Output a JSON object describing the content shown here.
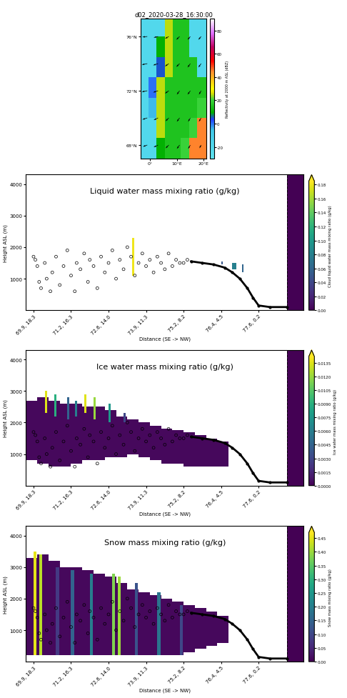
{
  "observations": {
    "x": [
      0.0,
      0.05,
      0.1,
      0.15,
      0.2,
      0.3,
      0.35,
      0.45,
      0.5,
      0.6,
      0.7,
      0.8,
      0.9,
      1.0,
      1.1,
      1.15,
      1.25,
      1.35,
      1.45,
      1.5,
      1.6,
      1.7,
      1.8,
      1.9,
      2.0,
      2.1,
      2.2,
      2.3,
      2.4,
      2.5,
      2.6,
      2.7,
      2.8,
      2.9,
      3.0,
      3.1,
      3.2,
      3.3,
      3.4,
      3.5,
      3.6,
      3.7,
      3.8,
      3.9,
      4.0,
      4.1
    ],
    "y": [
      1700,
      1600,
      1400,
      900,
      700,
      1500,
      1000,
      600,
      1200,
      1700,
      800,
      1400,
      1900,
      1100,
      600,
      1500,
      1300,
      1800,
      900,
      1600,
      1400,
      700,
      1700,
      1200,
      1500,
      1900,
      1000,
      1600,
      1300,
      2000,
      1700,
      1100,
      1500,
      1800,
      1400,
      1600,
      1200,
      1700,
      1500,
      1300,
      1800,
      1400,
      1600,
      1500,
      1500,
      1600
    ]
  },
  "track": {
    "x": [
      4.2,
      4.5,
      4.8,
      5.1,
      5.3,
      5.5,
      5.7,
      5.85,
      6.0,
      6.3,
      6.75
    ],
    "y": [
      1550,
      1500,
      1450,
      1350,
      1200,
      1000,
      700,
      400,
      150,
      100,
      100
    ]
  },
  "chart_data": [
    {
      "type": "map",
      "title": "d02_2020-03-28_16:30:00",
      "xlim": [
        -3.5,
        21
      ],
      "ylim": [
        67,
        77.3
      ],
      "xticks": [
        {
          "value": 0,
          "label": "0°"
        },
        {
          "value": 10,
          "label": "10°E"
        },
        {
          "value": 20,
          "label": "20°E"
        }
      ],
      "yticks": [
        {
          "value": 68,
          "label": "68°N"
        },
        {
          "value": 72,
          "label": "72°N"
        },
        {
          "value": 76,
          "label": "76°N"
        }
      ],
      "lon_edges": [
        -3.5,
        -0.5,
        2.5,
        5.5,
        8.5,
        11.5,
        14.5,
        17.5,
        21
      ],
      "lat_edges": [
        67,
        68.5,
        70,
        71.5,
        73,
        74.5,
        76,
        77.3
      ],
      "reflectivity": [
        [
          -20,
          -20,
          10,
          15,
          15,
          20,
          45,
          45
        ],
        [
          -20,
          -20,
          25,
          15,
          15,
          15,
          20,
          45
        ],
        [
          -20,
          -5,
          25,
          15,
          15,
          15,
          15,
          20
        ],
        [
          -20,
          0,
          25,
          15,
          15,
          15,
          15,
          15
        ],
        [
          -20,
          -20,
          5,
          25,
          15,
          15,
          15,
          -20
        ],
        [
          -20,
          -20,
          10,
          25,
          15,
          15,
          -20,
          -20
        ],
        [
          -20,
          -20,
          -20,
          25,
          15,
          15,
          -20,
          -20
        ]
      ],
      "colorbar_label": "Reflectivity at 2000 m ASL (dBZ)",
      "colorbar_range": [
        -30,
        90
      ],
      "colorbar_ticks": [
        -20,
        0,
        20,
        40,
        60,
        80
      ],
      "wind": {
        "lon": [
          -1,
          3,
          7,
          11,
          15,
          19
        ],
        "lat": [
          68,
          70,
          72,
          74,
          76
        ],
        "u": [
          [
            -8,
            -8,
            -6,
            -5,
            -4,
            -3
          ],
          [
            -9,
            -8,
            -6,
            -5,
            -4,
            -4
          ],
          [
            -10,
            -9,
            -7,
            -5,
            -5,
            -4
          ],
          [
            -10,
            -9,
            -7,
            -6,
            -5,
            -5
          ],
          [
            -9,
            -8,
            -7,
            -6,
            -5,
            -5
          ]
        ],
        "v": [
          [
            -3,
            -4,
            -6,
            -7,
            -7,
            -6
          ],
          [
            -3,
            -4,
            -6,
            -7,
            -7,
            -7
          ],
          [
            -2,
            -3,
            -5,
            -7,
            -7,
            -7
          ],
          [
            -2,
            -3,
            -5,
            -6,
            -7,
            -7
          ],
          [
            -1,
            -2,
            -4,
            -6,
            -6,
            -6
          ]
        ]
      }
    },
    {
      "type": "cross_section",
      "title": "Liquid water mass mixing ratio (g/kg)",
      "xlabel": "Distance (SE -> NW)",
      "ylabel": "Height ASL (m)",
      "xlim": [
        -0.2,
        7.2
      ],
      "ylim": [
        0,
        4300
      ],
      "xticks": [
        {
          "value": 0,
          "label": "69.9, 18.3"
        },
        {
          "value": 1,
          "label": "71.2, 16.3"
        },
        {
          "value": 2,
          "label": "72.6, 14.0"
        },
        {
          "value": 3,
          "label": "73.9, 11.3"
        },
        {
          "value": 4,
          "label": "75.2, 8.2"
        },
        {
          "value": 5,
          "label": "76.4, 4.5"
        },
        {
          "value": 6,
          "label": "77.6, 0.2"
        }
      ],
      "yticks": [
        1000,
        2000,
        3000,
        4000
      ],
      "dashed_line_x": 6.75,
      "cells": {
        "x0": [
          2.62,
          5.0,
          5.3,
          5.55,
          6.75
        ],
        "x1": [
          2.68,
          5.05,
          5.4,
          5.6,
          7.2
        ],
        "bottom": [
          1100,
          1450,
          1300,
          1200,
          0
        ],
        "top": [
          2300,
          1550,
          1500,
          1450,
          4300
        ],
        "values": [
          0.18,
          0.05,
          0.08,
          0.06,
          0
        ]
      },
      "colorbar_label": "Cloud liquid water mass mixing ratio (g/kg)",
      "colorbar_range": [
        0,
        0.185
      ],
      "colorbar_ticks": [
        {
          "value": 0,
          "label": "0.00"
        },
        {
          "value": 0.02,
          "label": "0.02"
        },
        {
          "value": 0.04,
          "label": "0.04"
        },
        {
          "value": 0.06,
          "label": "0.06"
        },
        {
          "value": 0.08,
          "label": "0.08"
        },
        {
          "value": 0.1,
          "label": "0.10"
        },
        {
          "value": 0.12,
          "label": "0.12"
        },
        {
          "value": 0.14,
          "label": "0.14"
        },
        {
          "value": 0.16,
          "label": "0.16"
        },
        {
          "value": 0.18,
          "label": "0.18"
        }
      ]
    },
    {
      "type": "cross_section",
      "title": "Ice water mass mixing ratio (g/kg)",
      "xlabel": "Distance (SE -> NW)",
      "ylabel": "Height ASL (m)",
      "xlim": [
        -0.2,
        7.2
      ],
      "ylim": [
        0,
        4300
      ],
      "xticks": [
        {
          "value": 0,
          "label": "69.9, 18.3"
        },
        {
          "value": 1,
          "label": "71.2, 16.3"
        },
        {
          "value": 2,
          "label": "72.6, 14.0"
        },
        {
          "value": 3,
          "label": "73.9, 11.3"
        },
        {
          "value": 4,
          "label": "75.2, 8.2"
        },
        {
          "value": 5,
          "label": "76.4, 4.5"
        },
        {
          "value": 6,
          "label": "77.6, 0.2"
        }
      ],
      "yticks": [
        1000,
        2000,
        3000,
        4000
      ],
      "dashed_line_x": 6.75,
      "cells": {
        "x0": [
          -0.2,
          0.1,
          0.4,
          0.7,
          1.0,
          1.3,
          1.6,
          1.9,
          2.2,
          2.5,
          2.8,
          3.1,
          3.4,
          3.7,
          4.0,
          4.3,
          4.6,
          4.9,
          0.3,
          0.55,
          0.9,
          1.1,
          1.35,
          1.6,
          2.0,
          2.4,
          6.75
        ],
        "x1": [
          0.1,
          0.4,
          0.7,
          1.0,
          1.3,
          1.6,
          1.9,
          2.2,
          2.5,
          2.8,
          3.1,
          3.4,
          3.7,
          4.0,
          4.3,
          4.6,
          4.9,
          5.2,
          0.36,
          0.61,
          0.96,
          1.16,
          1.41,
          1.66,
          2.06,
          2.46,
          7.2
        ],
        "bottom": [
          800,
          700,
          600,
          600,
          700,
          800,
          800,
          900,
          900,
          1000,
          900,
          800,
          700,
          700,
          600,
          600,
          600,
          600,
          2300,
          2200,
          2100,
          2200,
          2300,
          2100,
          2000,
          2000,
          0
        ],
        "top": [
          2700,
          2800,
          2700,
          2600,
          2600,
          2500,
          2500,
          2400,
          2200,
          2100,
          2000,
          1900,
          1800,
          1750,
          1700,
          1600,
          1500,
          1400,
          3000,
          2900,
          2800,
          2700,
          2900,
          2800,
          2600,
          2300,
          4300
        ],
        "values": [
          0.0003,
          0.0003,
          0.0003,
          0.0003,
          0.0003,
          0.0003,
          0.0003,
          0.0003,
          0.0003,
          0.0003,
          0.0003,
          0.0003,
          0.0003,
          0.0003,
          0.0003,
          0.0003,
          0.0003,
          0.0003,
          0.0135,
          0.009,
          0.0045,
          0.006,
          0.0135,
          0.012,
          0.0075,
          0.003,
          0
        ]
      },
      "colorbar_label": "Ice water mass mixing ratio (g/kg)",
      "colorbar_range": [
        0,
        0.0142
      ],
      "colorbar_ticks": [
        {
          "value": 0,
          "label": "0.0000"
        },
        {
          "value": 0.0015,
          "label": "0.0015"
        },
        {
          "value": 0.003,
          "label": "0.0030"
        },
        {
          "value": 0.0045,
          "label": "0.0045"
        },
        {
          "value": 0.006,
          "label": "0.0060"
        },
        {
          "value": 0.0075,
          "label": "0.0075"
        },
        {
          "value": 0.009,
          "label": "0.0090"
        },
        {
          "value": 0.0105,
          "label": "0.0105"
        },
        {
          "value": 0.012,
          "label": "0.0120"
        },
        {
          "value": 0.0135,
          "label": "0.0135"
        }
      ]
    },
    {
      "type": "cross_section",
      "title": "Snow mass mixing ratio (g/kg)",
      "xlabel": "Distance (SE -> NW)",
      "ylabel": "Height ASL (m)",
      "xlim": [
        -0.2,
        7.2
      ],
      "ylim": [
        0,
        4300
      ],
      "xticks": [
        {
          "value": 0,
          "label": "69.9, 18.3"
        },
        {
          "value": 1,
          "label": "71.2, 16.3"
        },
        {
          "value": 2,
          "label": "72.6, 14.0"
        },
        {
          "value": 3,
          "label": "73.9, 11.3"
        },
        {
          "value": 4,
          "label": "75.2, 8.2"
        },
        {
          "value": 5,
          "label": "76.4, 4.5"
        },
        {
          "value": 6,
          "label": "77.6, 0.2"
        }
      ],
      "yticks": [
        1000,
        2000,
        3000,
        4000
      ],
      "dashed_line_x": 6.75,
      "cells": {
        "x0": [
          -0.2,
          0.1,
          0.4,
          0.7,
          1.0,
          1.3,
          1.6,
          1.9,
          2.2,
          2.5,
          2.8,
          3.1,
          3.4,
          3.7,
          4.0,
          4.3,
          4.6,
          4.9,
          0.0,
          0.15,
          0.6,
          1.0,
          1.5,
          2.1,
          2.25,
          2.7,
          3.3,
          3.9,
          6.75
        ],
        "x1": [
          0.1,
          0.4,
          0.7,
          1.0,
          1.3,
          1.6,
          1.9,
          2.2,
          2.5,
          2.8,
          3.1,
          3.4,
          3.7,
          4.0,
          4.3,
          4.6,
          4.9,
          5.2,
          0.08,
          0.23,
          0.68,
          1.08,
          1.58,
          2.18,
          2.33,
          2.78,
          3.38,
          3.98,
          7.2
        ],
        "bottom": [
          200,
          200,
          200,
          200,
          200,
          200,
          200,
          200,
          200,
          200,
          200,
          200,
          200,
          200,
          300,
          400,
          500,
          600,
          200,
          200,
          200,
          200,
          200,
          200,
          200,
          200,
          200,
          200,
          0
        ],
        "top": [
          3300,
          3400,
          3200,
          3000,
          3000,
          2900,
          2800,
          2700,
          2500,
          2300,
          2200,
          2100,
          2000,
          1900,
          1800,
          1700,
          1600,
          1450,
          3500,
          3400,
          3000,
          2900,
          2800,
          2800,
          2700,
          2500,
          2200,
          1800,
          4300
        ],
        "values": [
          0.01,
          0.01,
          0.01,
          0.01,
          0.01,
          0.01,
          0.01,
          0.01,
          0.01,
          0.01,
          0.01,
          0.01,
          0.01,
          0.01,
          0.01,
          0.01,
          0.01,
          0.01,
          0.45,
          0.42,
          0.08,
          0.15,
          0.2,
          0.38,
          0.4,
          0.12,
          0.18,
          0.1,
          0
        ]
      },
      "colorbar_label": "Snow mass mixing ratio (g/kg)",
      "colorbar_range": [
        0,
        0.47
      ],
      "colorbar_ticks": [
        {
          "value": 0,
          "label": "0.00"
        },
        {
          "value": 0.05,
          "label": "0.05"
        },
        {
          "value": 0.1,
          "label": "0.10"
        },
        {
          "value": 0.15,
          "label": "0.15"
        },
        {
          "value": 0.2,
          "label": "0.20"
        },
        {
          "value": 0.25,
          "label": "0.25"
        },
        {
          "value": 0.3,
          "label": "0.30"
        },
        {
          "value": 0.35,
          "label": "0.35"
        },
        {
          "value": 0.4,
          "label": "0.40"
        },
        {
          "value": 0.45,
          "label": "0.45"
        }
      ]
    }
  ]
}
